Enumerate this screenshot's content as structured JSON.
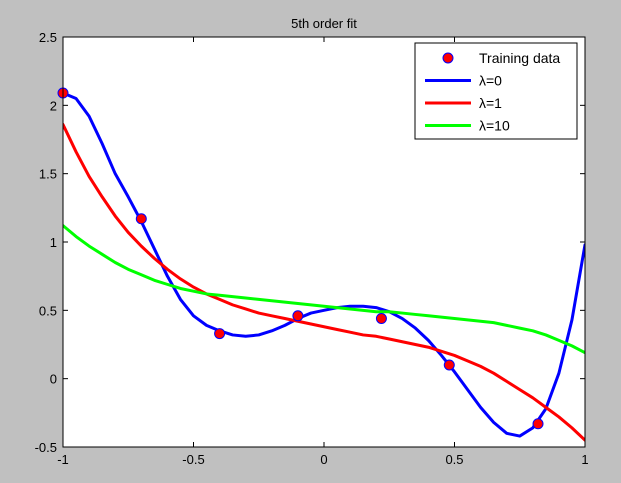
{
  "chart_data": {
    "type": "line",
    "title": "5th order fit",
    "xlabel": "",
    "ylabel": "",
    "xlim": [
      -1,
      1
    ],
    "ylim": [
      -0.5,
      2.5
    ],
    "xticks": [
      -1,
      -0.5,
      0,
      0.5,
      1
    ],
    "xtick_labels": [
      "-1",
      "-0.5",
      "0",
      "0.5",
      "1"
    ],
    "yticks": [
      -0.5,
      0,
      0.5,
      1,
      1.5,
      2,
      2.5
    ],
    "ytick_labels": [
      "-0.5",
      "0",
      "0.5",
      "1",
      "1.5",
      "2",
      "2.5"
    ],
    "grid": false,
    "legend_position": "top-right",
    "scatter": {
      "name": "Training data",
      "marker_fill": "#ff0000",
      "marker_edge": "#0000ff",
      "x": [
        -1.0,
        -0.7,
        -0.4,
        -0.1,
        0.22,
        0.48,
        0.82
      ],
      "y": [
        2.09,
        1.17,
        0.33,
        0.46,
        0.44,
        0.1,
        -0.33
      ]
    },
    "series": [
      {
        "name": "λ=0",
        "color": "#0000ff",
        "x": [
          -1.0,
          -0.95,
          -0.9,
          -0.85,
          -0.8,
          -0.75,
          -0.7,
          -0.65,
          -0.6,
          -0.55,
          -0.5,
          -0.45,
          -0.4,
          -0.35,
          -0.3,
          -0.25,
          -0.2,
          -0.15,
          -0.1,
          -0.05,
          0.0,
          0.05,
          0.1,
          0.15,
          0.2,
          0.25,
          0.3,
          0.35,
          0.4,
          0.45,
          0.5,
          0.55,
          0.6,
          0.65,
          0.7,
          0.75,
          0.8,
          0.85,
          0.9,
          0.95,
          1.0
        ],
        "y": [
          2.09,
          2.05,
          1.92,
          1.72,
          1.5,
          1.33,
          1.15,
          0.95,
          0.75,
          0.58,
          0.46,
          0.39,
          0.35,
          0.32,
          0.31,
          0.32,
          0.35,
          0.39,
          0.44,
          0.48,
          0.5,
          0.52,
          0.53,
          0.53,
          0.52,
          0.49,
          0.44,
          0.37,
          0.28,
          0.17,
          0.05,
          -0.08,
          -0.21,
          -0.32,
          -0.4,
          -0.42,
          -0.36,
          -0.22,
          0.04,
          0.43,
          0.98
        ]
      },
      {
        "name": "λ=1",
        "color": "#ff0000",
        "x": [
          -1.0,
          -0.95,
          -0.9,
          -0.85,
          -0.8,
          -0.75,
          -0.7,
          -0.65,
          -0.6,
          -0.55,
          -0.5,
          -0.45,
          -0.4,
          -0.35,
          -0.3,
          -0.25,
          -0.2,
          -0.15,
          -0.1,
          -0.05,
          0.0,
          0.05,
          0.1,
          0.15,
          0.2,
          0.25,
          0.3,
          0.35,
          0.4,
          0.45,
          0.5,
          0.55,
          0.6,
          0.65,
          0.7,
          0.75,
          0.8,
          0.85,
          0.9,
          0.95,
          1.0
        ],
        "y": [
          1.86,
          1.66,
          1.48,
          1.33,
          1.19,
          1.07,
          0.97,
          0.88,
          0.8,
          0.73,
          0.67,
          0.62,
          0.58,
          0.54,
          0.51,
          0.48,
          0.46,
          0.44,
          0.42,
          0.4,
          0.38,
          0.36,
          0.34,
          0.32,
          0.31,
          0.29,
          0.27,
          0.25,
          0.23,
          0.2,
          0.17,
          0.13,
          0.09,
          0.04,
          -0.02,
          -0.08,
          -0.14,
          -0.21,
          -0.28,
          -0.36,
          -0.45
        ]
      },
      {
        "name": "λ=10",
        "color": "#00ff00",
        "x": [
          -1.0,
          -0.95,
          -0.9,
          -0.85,
          -0.8,
          -0.75,
          -0.7,
          -0.65,
          -0.6,
          -0.55,
          -0.5,
          -0.45,
          -0.4,
          -0.35,
          -0.3,
          -0.25,
          -0.2,
          -0.15,
          -0.1,
          -0.05,
          0.0,
          0.05,
          0.1,
          0.15,
          0.2,
          0.25,
          0.3,
          0.35,
          0.4,
          0.45,
          0.5,
          0.55,
          0.6,
          0.65,
          0.7,
          0.75,
          0.8,
          0.85,
          0.9,
          0.95,
          1.0
        ],
        "y": [
          1.12,
          1.04,
          0.97,
          0.91,
          0.85,
          0.8,
          0.76,
          0.72,
          0.69,
          0.66,
          0.64,
          0.62,
          0.61,
          0.6,
          0.59,
          0.58,
          0.57,
          0.56,
          0.55,
          0.54,
          0.53,
          0.52,
          0.51,
          0.5,
          0.49,
          0.49,
          0.48,
          0.47,
          0.46,
          0.45,
          0.44,
          0.43,
          0.42,
          0.41,
          0.39,
          0.37,
          0.35,
          0.32,
          0.28,
          0.24,
          0.19
        ]
      }
    ]
  }
}
